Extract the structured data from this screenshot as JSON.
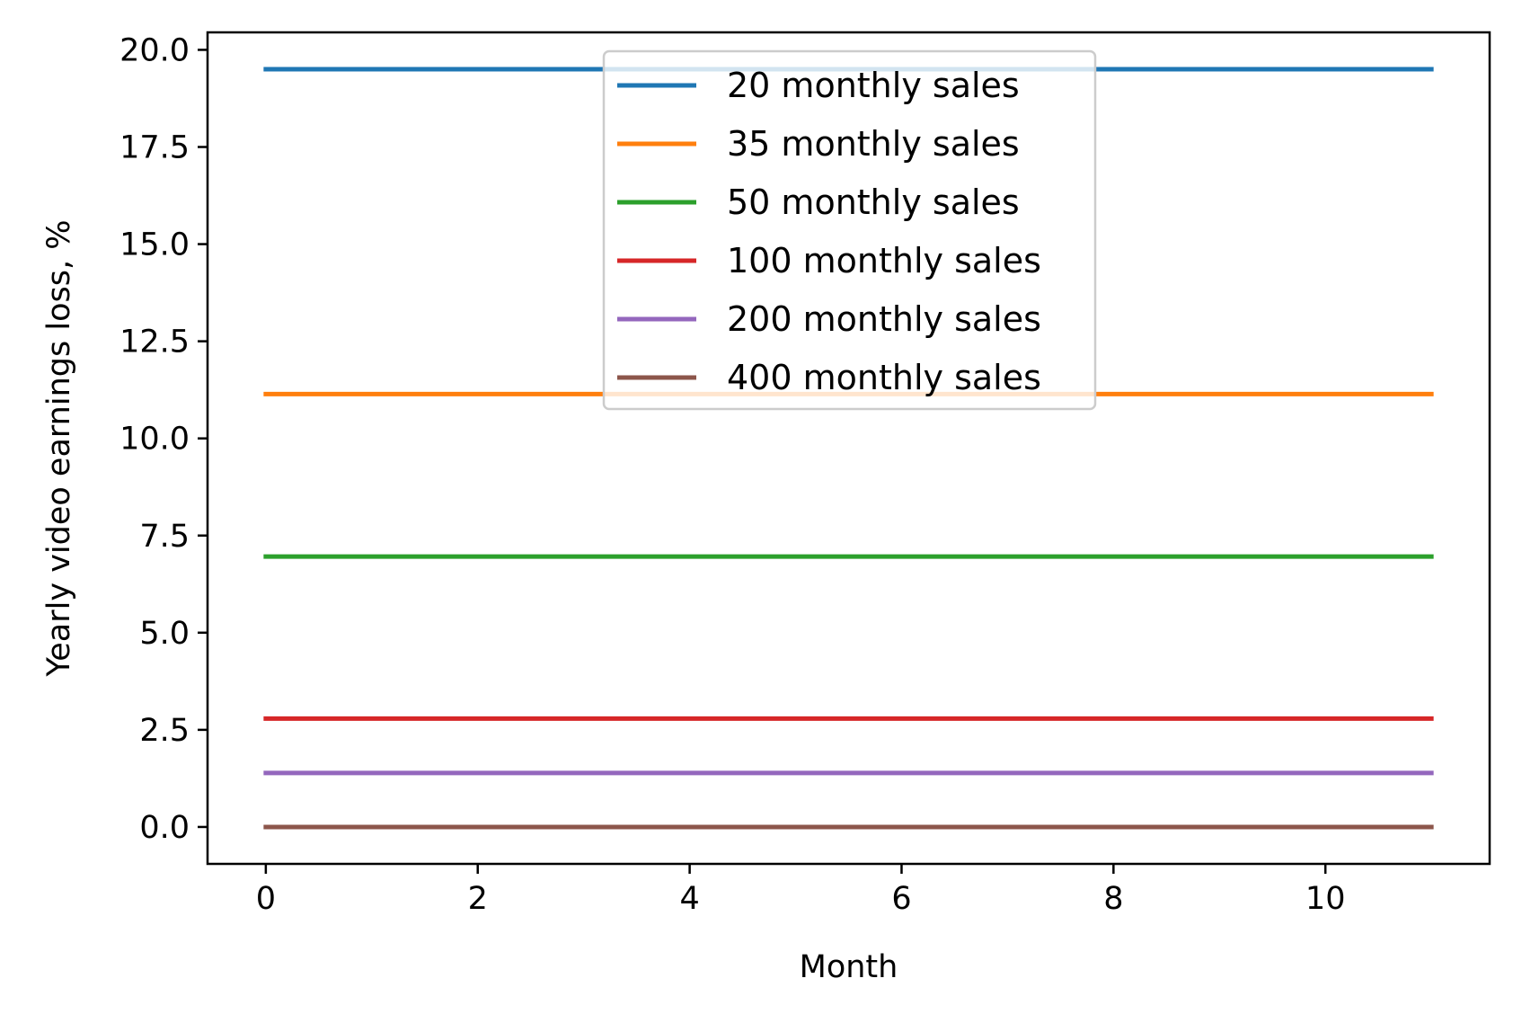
{
  "chart_data": {
    "type": "line",
    "title": "",
    "xlabel": "Month",
    "ylabel": "Yearly video earnings loss, %",
    "x": [
      0,
      1,
      2,
      3,
      4,
      5,
      6,
      7,
      8,
      9,
      10,
      11
    ],
    "xlim": [
      -0.55,
      11.55
    ],
    "ylim": [
      -0.95,
      20.45
    ],
    "xticks": [
      0,
      2,
      4,
      6,
      8,
      10
    ],
    "xtick_labels": [
      "0",
      "2",
      "4",
      "6",
      "8",
      "10"
    ],
    "yticks": [
      0,
      2.5,
      5,
      7.5,
      10,
      12.5,
      15,
      17.5,
      20
    ],
    "ytick_labels": [
      "0.0",
      "2.5",
      "5.0",
      "7.5",
      "10.0",
      "12.5",
      "15.0",
      "17.5",
      "20.0"
    ],
    "grid": false,
    "legend_position": "upper center",
    "series": [
      {
        "name": "20 monthly sales",
        "color": "#1f77b4",
        "values": [
          19.5,
          19.5,
          19.5,
          19.5,
          19.5,
          19.5,
          19.5,
          19.5,
          19.5,
          19.5,
          19.5,
          19.5
        ]
      },
      {
        "name": "35 monthly sales",
        "color": "#ff7f0e",
        "values": [
          11.14,
          11.14,
          11.14,
          11.14,
          11.14,
          11.14,
          11.14,
          11.14,
          11.14,
          11.14,
          11.14,
          11.14
        ]
      },
      {
        "name": "50 monthly sales",
        "color": "#2ca02c",
        "values": [
          6.96,
          6.96,
          6.96,
          6.96,
          6.96,
          6.96,
          6.96,
          6.96,
          6.96,
          6.96,
          6.96,
          6.96
        ]
      },
      {
        "name": "100 monthly sales",
        "color": "#d62728",
        "values": [
          2.79,
          2.79,
          2.79,
          2.79,
          2.79,
          2.79,
          2.79,
          2.79,
          2.79,
          2.79,
          2.79,
          2.79
        ]
      },
      {
        "name": "200 monthly sales",
        "color": "#9467bd",
        "values": [
          1.39,
          1.39,
          1.39,
          1.39,
          1.39,
          1.39,
          1.39,
          1.39,
          1.39,
          1.39,
          1.39,
          1.39
        ]
      },
      {
        "name": "400 monthly sales",
        "color": "#8c564b",
        "values": [
          0,
          0,
          0,
          0,
          0,
          0,
          0,
          0,
          0,
          0,
          0,
          0
        ]
      }
    ]
  }
}
